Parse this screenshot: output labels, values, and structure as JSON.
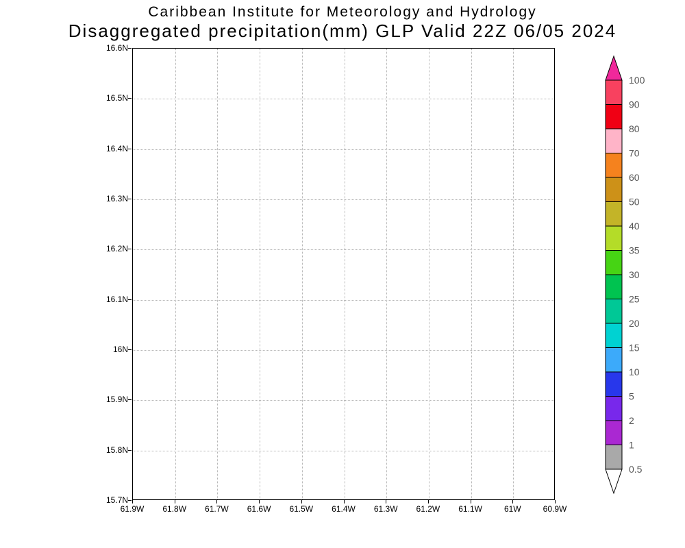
{
  "header": {
    "title_line1": "Caribbean Institute for Meteorology and Hydrology",
    "title_line2": "Disaggregated precipitation(mm) GLP Valid 22Z 06/05 2024"
  },
  "chart_data": {
    "type": "heatmap",
    "title": "Caribbean Institute for Meteorology and Hydrology",
    "subtitle": "Disaggregated precipitation(mm) GLP Valid 22Z 06/05 2024",
    "x_tick_labels": [
      "61.9W",
      "61.8W",
      "61.7W",
      "61.6W",
      "61.5W",
      "61.4W",
      "61.3W",
      "61.2W",
      "61.1W",
      "61W",
      "60.9W"
    ],
    "y_tick_labels": [
      "16.6N",
      "16.5N",
      "16.4N",
      "16.3N",
      "16.2N",
      "16.1N",
      "16N",
      "15.9N",
      "15.8N",
      "15.7N"
    ],
    "xlim": [
      "61.9W",
      "60.9W"
    ],
    "ylim": [
      "15.7N",
      "16.6N"
    ],
    "grid": true,
    "values": [],
    "colorbar": {
      "labels": [
        "100",
        "90",
        "80",
        "70",
        "60",
        "50",
        "40",
        "35",
        "30",
        "25",
        "20",
        "15",
        "10",
        "5",
        "2",
        "1",
        "0.5"
      ],
      "segment_colors_top_to_bottom": [
        "#f8415f",
        "#f00014",
        "#ffb4c8",
        "#f5821e",
        "#cd9118",
        "#c3b428",
        "#b4dc28",
        "#46d414",
        "#00c350",
        "#00c896",
        "#00d2d2",
        "#3caafa",
        "#2837eb",
        "#7828eb",
        "#aa28d2",
        "#a9a9a9"
      ],
      "above_max_color": "#f0289b",
      "below_min_color": "#ffffff",
      "label_color": "#555555"
    }
  }
}
